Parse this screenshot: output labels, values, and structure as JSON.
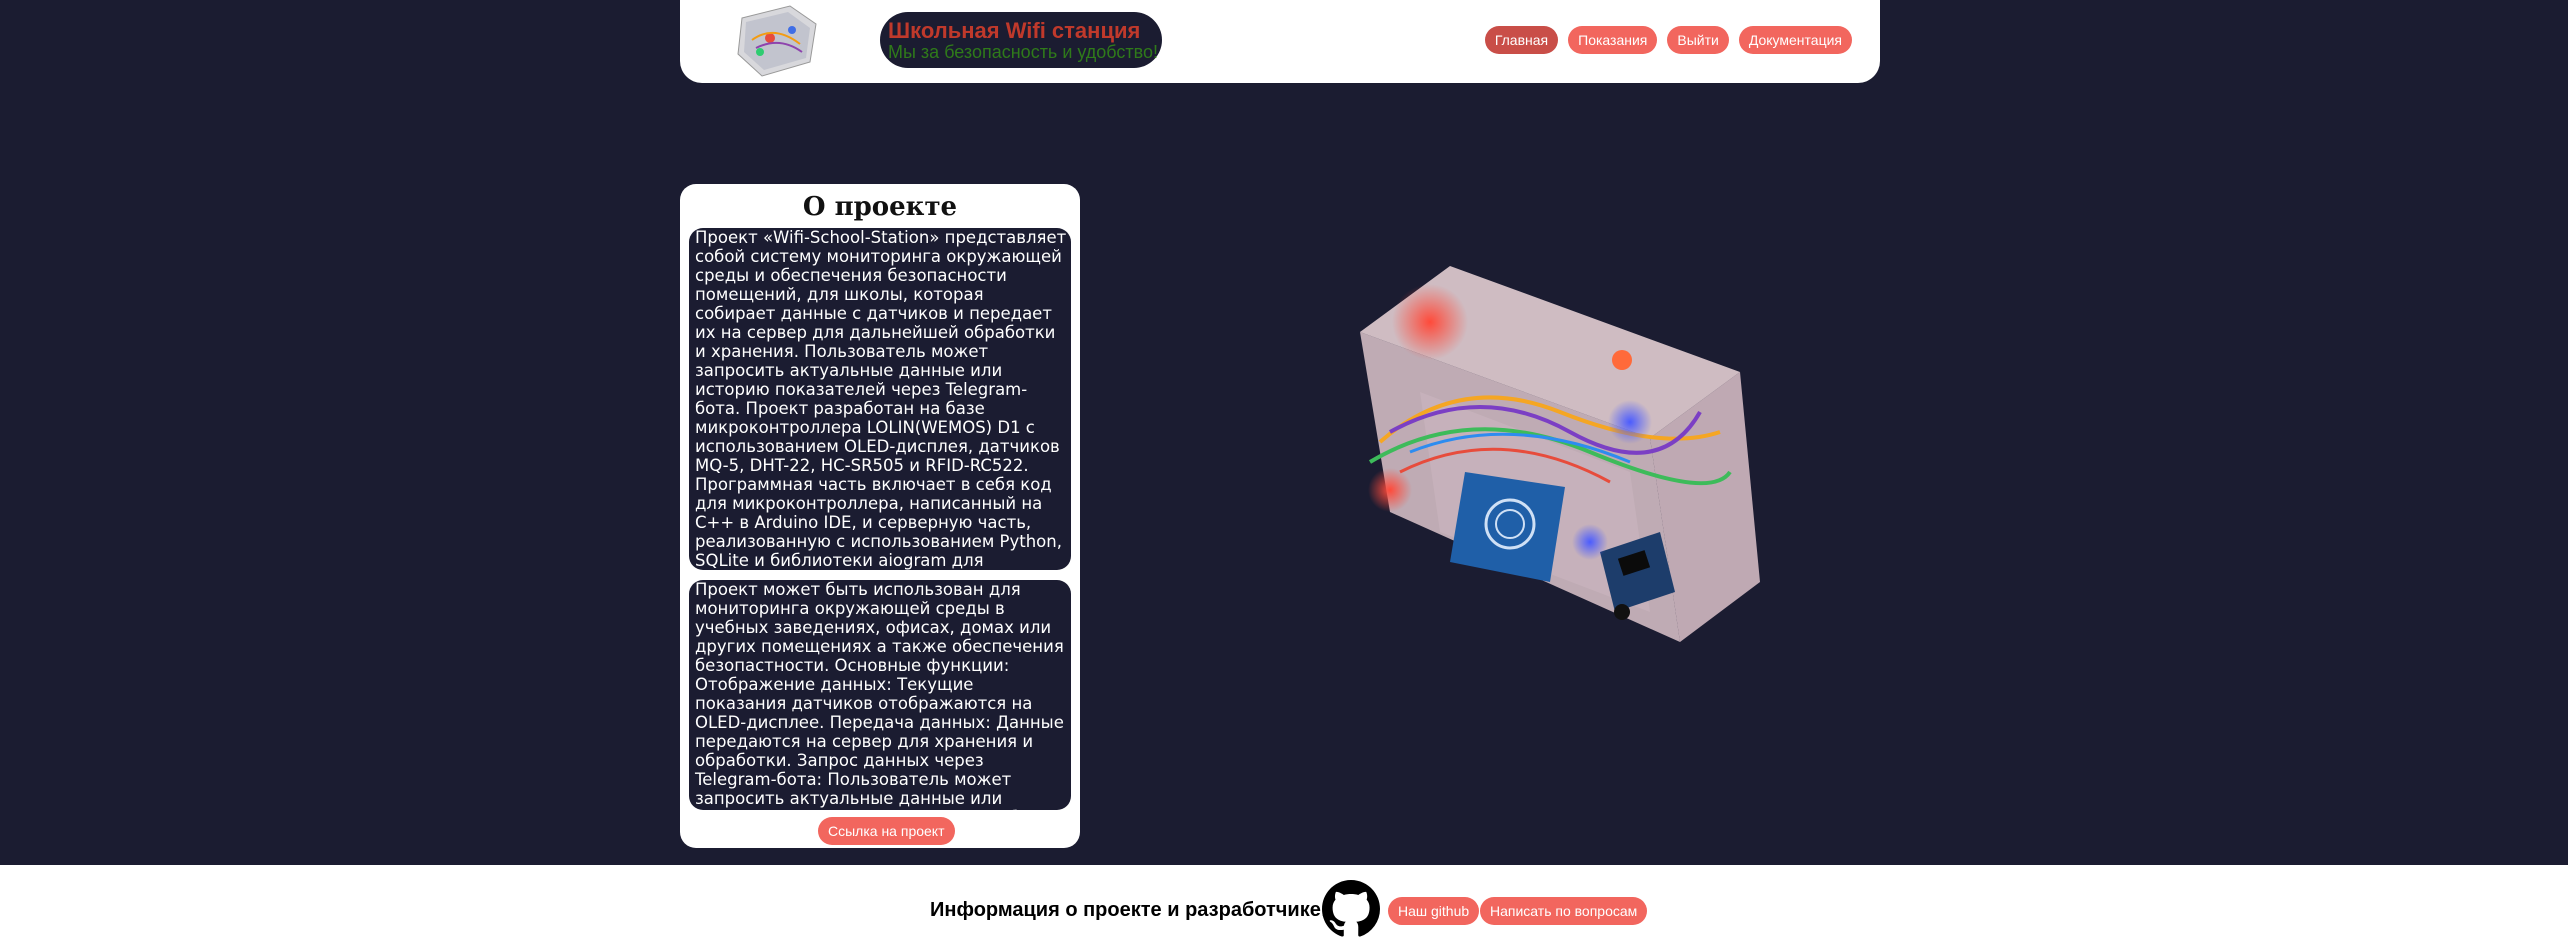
{
  "header": {
    "brand_title": "Школьная Wifi станция",
    "brand_subtitle": "Мы за безопасность и удобство!",
    "nav": [
      {
        "label": "Главная",
        "active": true
      },
      {
        "label": "Показания",
        "active": false
      },
      {
        "label": "Выйти",
        "active": false
      },
      {
        "label": "Документация",
        "active": false
      }
    ]
  },
  "about": {
    "title": "О проекте",
    "paragraph1": "Проект «Wifi-School-Station» представляет собой систему мониторинга окружающей среды и обеспечения безопасности помещений, для школы, которая собирает данные с датчиков и передает их на сервер для дальнейшей обработки и хранения. Пользователь может запросить актуальные данные или историю показателей через Telegram-бота. Проект разработан на базе микроконтроллера LOLIN(WEMOS) D1 с использованием OLED-дисплея, датчиков MQ-5, DHT-22, HC-SR505 и RFID-RC522. Программная часть включает в себя код для микроконтроллера, написанный на C++ в Arduino IDE, и серверную часть, реализованную с использованием Python, SQLite и библиотеки aiogram для Telegram-бота.",
    "paragraph2": "Проект может быть использован для мониторинга окружающей среды в учебных заведениях, офисах, домах или других помещениях а также обеспечения безопастности. Основные функции: Отображение данных: Текущие показания датчиков отображаются на OLED-дисплее. Передача данных: Данные передаются на сервер для хранения и обработки. Запрос данных через Telegram-бота: Пользователь может запросить актуальные данные или историю показаний через Telegram-бота.",
    "link_label": "Ссылка на проект"
  },
  "footer": {
    "label": "Информация о проекте и разработчике:",
    "github_label": "Наш github",
    "contact_label": "Написать по вопросам"
  },
  "colors": {
    "background": "#1b1c31",
    "accent": "#f2665e",
    "accent_active": "#c94e48",
    "brand_title": "#c0392b",
    "brand_subtitle": "#2f7a1a"
  },
  "icons": [
    "device-logo-icon",
    "device-photo",
    "github-icon"
  ]
}
